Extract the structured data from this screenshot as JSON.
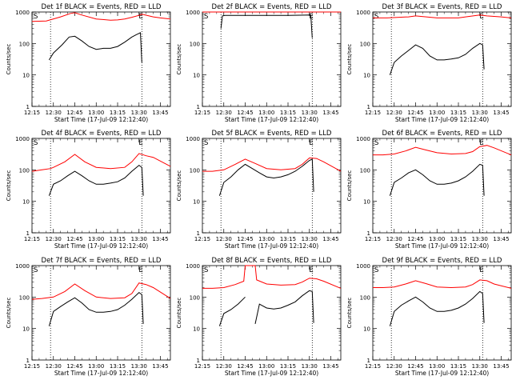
{
  "chart_data": {
    "type": "line",
    "scale_y": "log",
    "ylim": [
      1,
      1000
    ],
    "xlim": [
      "12:15",
      "13:52"
    ],
    "x_ticks": [
      "12:15",
      "12:30",
      "12:45",
      "13:00",
      "13:15",
      "13:30",
      "13:45"
    ],
    "y_ticks": [
      "1",
      "10",
      "100",
      "1000"
    ],
    "xlabel": "Start Time (17-Jul-09 12:12:40)",
    "ylabel": "Counts/sec",
    "series_colors": {
      "events": "#000000",
      "lld": "#ff0000"
    },
    "marker_lines": [
      "12:28",
      "13:32"
    ],
    "corner_markers": [
      "S",
      "E"
    ],
    "panels": [
      {
        "title": "Det 1f BLACK = Events, RED = LLD",
        "events": {
          "x": [
            "12:27",
            "12:30",
            "12:36",
            "12:41",
            "12:45",
            "12:50",
            "12:55",
            "13:00",
            "13:05",
            "13:10",
            "13:15",
            "13:20",
            "13:25",
            "13:28",
            "13:31",
            "13:32"
          ],
          "y": [
            30,
            50,
            90,
            160,
            170,
            120,
            80,
            65,
            70,
            70,
            80,
            110,
            160,
            190,
            220,
            25
          ]
        },
        "lld": {
          "x": [
            "12:15",
            "12:25",
            "12:35",
            "12:42",
            "12:45",
            "12:50",
            "13:00",
            "13:10",
            "13:15",
            "13:20",
            "13:25",
            "13:30",
            "13:32",
            "13:40",
            "13:45",
            "13:52"
          ],
          "y": [
            500,
            520,
            700,
            900,
            950,
            800,
            600,
            550,
            560,
            600,
            680,
            780,
            850,
            700,
            650,
            600
          ]
        }
      },
      {
        "title": "Det 2f BLACK = Events, RED = LLD",
        "events": {
          "x": [
            "12:28",
            "12:29",
            "12:31",
            "12:45",
            "13:00",
            "13:15",
            "13:30",
            "13:31",
            "13:32"
          ],
          "y": [
            300,
            750,
            780,
            780,
            780,
            780,
            800,
            790,
            150
          ]
        },
        "lld": {
          "x": [
            "12:15",
            "12:30",
            "12:45",
            "13:00",
            "13:15",
            "13:30",
            "13:40",
            "13:52"
          ],
          "y": [
            1100,
            1100,
            1100,
            1100,
            1100,
            1100,
            1100,
            1080
          ]
        }
      },
      {
        "title": "Det 3f BLACK = Events, RED = LLD",
        "events": {
          "x": [
            "12:27",
            "12:30",
            "12:35",
            "12:40",
            "12:45",
            "12:50",
            "12:55",
            "13:00",
            "13:05",
            "13:10",
            "13:15",
            "13:20",
            "13:25",
            "13:30",
            "13:32",
            "13:33"
          ],
          "y": [
            10,
            25,
            40,
            60,
            90,
            70,
            40,
            30,
            30,
            32,
            35,
            45,
            70,
            100,
            90,
            15
          ]
        },
        "lld": {
          "x": [
            "12:15",
            "12:25",
            "12:40",
            "12:45",
            "13:00",
            "13:15",
            "13:20",
            "13:30",
            "13:35",
            "13:45",
            "13:52"
          ],
          "y": [
            650,
            650,
            700,
            750,
            650,
            650,
            700,
            800,
            750,
            700,
            650
          ]
        }
      },
      {
        "title": "Det 4f BLACK = Events, RED = LLD",
        "events": {
          "x": [
            "12:27",
            "12:30",
            "12:35",
            "12:40",
            "12:45",
            "12:50",
            "12:55",
            "13:00",
            "13:05",
            "13:10",
            "13:15",
            "13:20",
            "13:25",
            "13:30",
            "13:32",
            "13:33"
          ],
          "y": [
            15,
            35,
            45,
            65,
            90,
            65,
            45,
            35,
            35,
            38,
            42,
            55,
            90,
            140,
            120,
            15
          ]
        },
        "lld": {
          "x": [
            "12:15",
            "12:22",
            "12:28",
            "12:30",
            "12:38",
            "12:45",
            "12:52",
            "13:00",
            "13:10",
            "13:20",
            "13:25",
            "13:30",
            "13:35",
            "13:40",
            "13:52"
          ],
          "y": [
            90,
            100,
            110,
            120,
            180,
            310,
            180,
            120,
            110,
            120,
            180,
            330,
            280,
            250,
            130
          ]
        }
      },
      {
        "title": "Det 5f BLACK = Events, RED = LLD",
        "events": {
          "x": [
            "12:27",
            "12:30",
            "12:35",
            "12:40",
            "12:45",
            "12:50",
            "12:55",
            "13:00",
            "13:05",
            "13:10",
            "13:15",
            "13:20",
            "13:25",
            "13:30",
            "13:32",
            "13:33"
          ],
          "y": [
            15,
            40,
            60,
            100,
            150,
            110,
            80,
            60,
            55,
            60,
            70,
            90,
            130,
            200,
            220,
            20
          ]
        },
        "lld": {
          "x": [
            "12:15",
            "12:22",
            "12:30",
            "12:38",
            "12:45",
            "12:52",
            "13:00",
            "13:10",
            "13:20",
            "13:25",
            "13:30",
            "13:35",
            "13:40",
            "13:52"
          ],
          "y": [
            90,
            90,
            100,
            150,
            220,
            160,
            110,
            100,
            110,
            150,
            240,
            230,
            180,
            90
          ]
        }
      },
      {
        "title": "Det 6f BLACK = Events, RED = LLD",
        "events": {
          "x": [
            "12:27",
            "12:30",
            "12:35",
            "12:40",
            "12:45",
            "12:50",
            "12:55",
            "13:00",
            "13:05",
            "13:10",
            "13:15",
            "13:20",
            "13:25",
            "13:30",
            "13:32",
            "13:33"
          ],
          "y": [
            15,
            40,
            55,
            80,
            100,
            70,
            45,
            35,
            35,
            38,
            45,
            60,
            90,
            150,
            140,
            15
          ]
        },
        "lld": {
          "x": [
            "12:15",
            "12:22",
            "12:30",
            "12:38",
            "12:45",
            "12:52",
            "13:00",
            "13:10",
            "13:20",
            "13:25",
            "13:30",
            "13:35",
            "13:40",
            "13:52"
          ],
          "y": [
            300,
            300,
            320,
            400,
            520,
            430,
            350,
            320,
            330,
            380,
            550,
            600,
            500,
            300
          ]
        }
      },
      {
        "title": "Det 7f BLACK = Events, RED = LLD",
        "events": {
          "x": [
            "12:27",
            "12:30",
            "12:35",
            "12:40",
            "12:45",
            "12:50",
            "12:55",
            "13:00",
            "13:05",
            "13:10",
            "13:15",
            "13:20",
            "13:25",
            "13:30",
            "13:32",
            "13:33"
          ],
          "y": [
            12,
            35,
            50,
            70,
            95,
            65,
            40,
            33,
            33,
            35,
            40,
            55,
            85,
            140,
            120,
            14
          ]
        },
        "lld": {
          "x": [
            "12:15",
            "12:22",
            "12:30",
            "12:38",
            "12:45",
            "12:52",
            "13:00",
            "13:10",
            "13:20",
            "13:25",
            "13:30",
            "13:35",
            "13:40",
            "13:52"
          ],
          "y": [
            85,
            90,
            100,
            150,
            260,
            160,
            100,
            90,
            95,
            130,
            280,
            250,
            200,
            90
          ]
        }
      },
      {
        "title": "Det 8f BLACK = Events, RED = LLD",
        "events": {
          "x": [
            "12:27",
            "12:30",
            "12:35",
            "12:40",
            "12:45",
            "12:48",
            "12:52",
            "12:55",
            "13:00",
            "13:05",
            "13:10",
            "13:15",
            "13:20",
            "13:25",
            "13:30",
            "13:32",
            "13:33"
          ],
          "y": [
            12,
            30,
            40,
            60,
            100,
            null,
            14,
            60,
            45,
            42,
            45,
            55,
            70,
            110,
            160,
            150,
            15
          ]
        },
        "lld": {
          "x": [
            "12:15",
            "12:22",
            "12:30",
            "12:38",
            "12:44",
            "12:45",
            "12:46",
            "12:51",
            "12:52",
            "12:53",
            "13:00",
            "13:10",
            "13:20",
            "13:25",
            "13:30",
            "13:35",
            "13:40",
            "13:52"
          ],
          "y": [
            190,
            190,
            200,
            250,
            320,
            1000,
            1000,
            1000,
            1000,
            350,
            260,
            240,
            250,
            300,
            400,
            380,
            320,
            190
          ]
        }
      },
      {
        "title": "Det 9f BLACK = Events, RED = LLD",
        "events": {
          "x": [
            "12:27",
            "12:30",
            "12:35",
            "12:40",
            "12:45",
            "12:50",
            "12:55",
            "13:00",
            "13:05",
            "13:10",
            "13:15",
            "13:20",
            "13:25",
            "13:30",
            "13:32",
            "13:33"
          ],
          "y": [
            12,
            35,
            55,
            75,
            100,
            70,
            45,
            35,
            35,
            38,
            45,
            60,
            90,
            150,
            130,
            15
          ]
        },
        "lld": {
          "x": [
            "12:15",
            "12:22",
            "12:30",
            "12:38",
            "12:45",
            "12:52",
            "13:00",
            "13:10",
            "13:20",
            "13:25",
            "13:30",
            "13:35",
            "13:40",
            "13:52"
          ],
          "y": [
            200,
            200,
            210,
            260,
            330,
            270,
            210,
            200,
            210,
            250,
            350,
            330,
            260,
            190
          ]
        }
      }
    ]
  }
}
